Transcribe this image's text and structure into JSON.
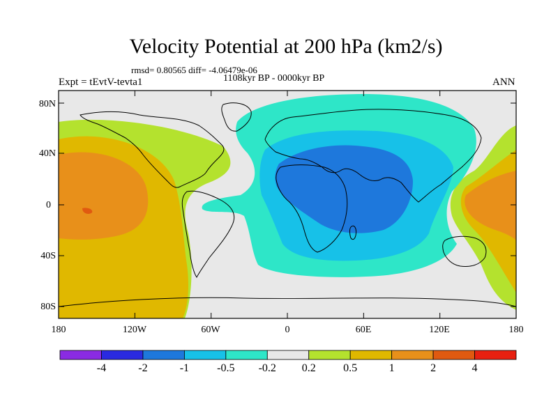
{
  "title": "Velocity Potential at 200 hPa (km2/s)",
  "stats": "rmsd= 0.80565 diff= -4.06479e-06",
  "period": "1108kyr BP - 0000kyr BP",
  "expt": "Expt = tEvtV-tevta1",
  "season": "ANN",
  "map": {
    "lat_labels": [
      "80N",
      "40N",
      "0",
      "40S",
      "80S"
    ],
    "lon_labels": [
      "180",
      "120W",
      "60W",
      "0",
      "60E",
      "120E",
      "180"
    ]
  },
  "colorbar": {
    "colors": [
      "#8a2be2",
      "#2a2ae0",
      "#1e78dc",
      "#17c1e8",
      "#2ee6c8",
      "#e8e8e8",
      "#b4e22e",
      "#e0b800",
      "#e8901a",
      "#e05a10",
      "#e82010"
    ],
    "labels": [
      "-4",
      "-2",
      "-1",
      "-0.5",
      "-0.2",
      "0.2",
      "0.5",
      "1",
      "2",
      "4"
    ]
  }
}
